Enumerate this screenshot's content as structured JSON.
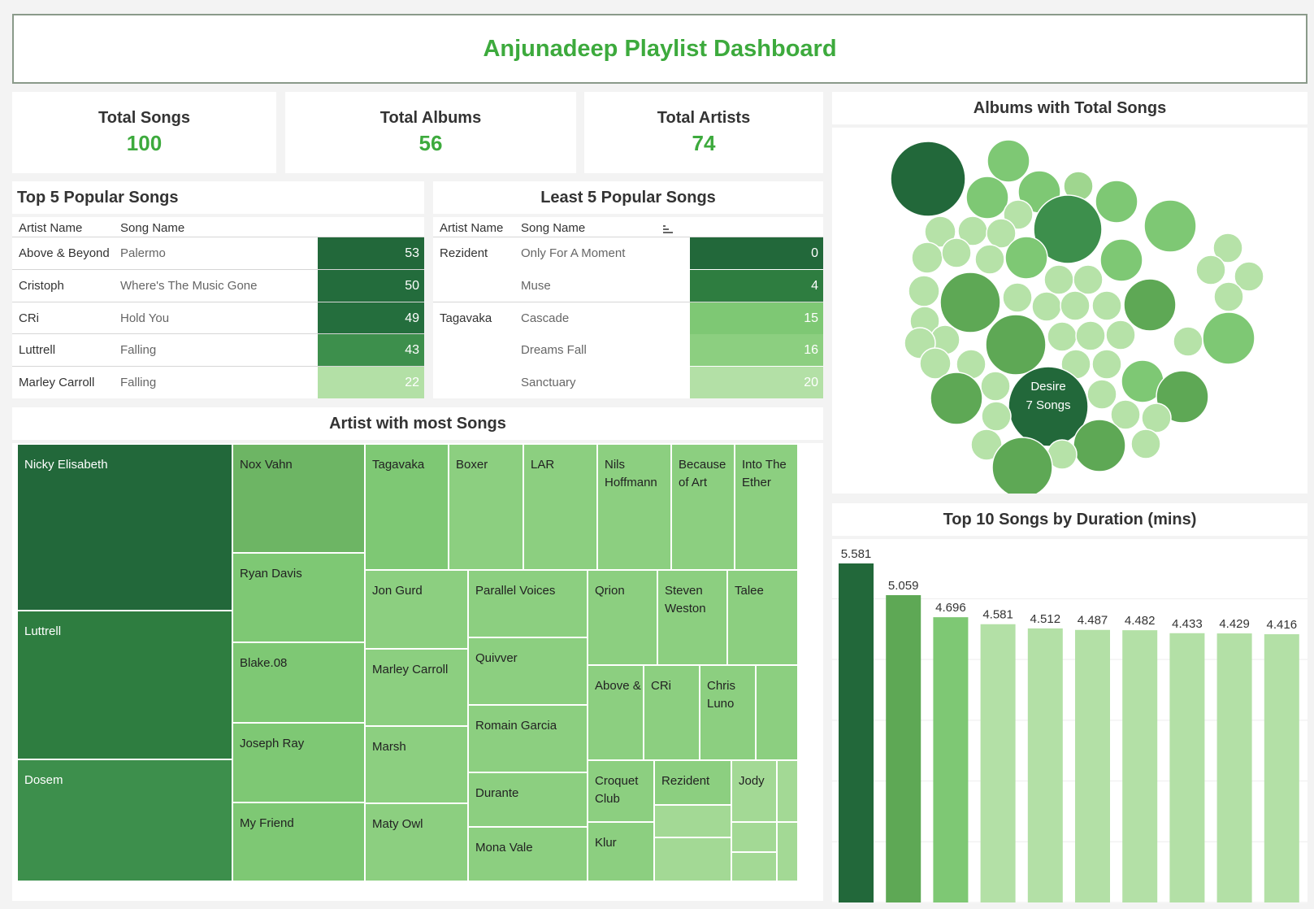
{
  "title": "Anjunadeep Playlist Dashboard",
  "kpis": [
    {
      "label": "Total Songs",
      "value": "100"
    },
    {
      "label": "Total Albums",
      "value": "56"
    },
    {
      "label": "Total Artists",
      "value": "74"
    }
  ],
  "top5": {
    "title": "Top 5 Popular Songs",
    "col_artist": "Artist Name",
    "col_song": "Song Name",
    "rows": [
      {
        "artist": "Above & Beyond",
        "song": "Palermo",
        "value": "53",
        "color": "#22683a"
      },
      {
        "artist": "Cristoph",
        "song": "Where's The Music Gone",
        "value": "50",
        "color": "#236c3c"
      },
      {
        "artist": "CRi",
        "song": "Hold You",
        "value": "49",
        "color": "#246e3d"
      },
      {
        "artist": "Luttrell",
        "song": "Falling",
        "value": "43",
        "color": "#3d8f4c"
      },
      {
        "artist": "Marley Carroll",
        "song": "Falling",
        "value": "22",
        "color": "#b3e0a6"
      }
    ]
  },
  "least5": {
    "title": "Least 5 Popular Songs",
    "col_artist": "Artist Name",
    "col_song": "Song Name",
    "rows": [
      {
        "artist": "Rezident",
        "song": "Only For A Moment",
        "value": "0",
        "color": "#22683a"
      },
      {
        "artist": "",
        "song": "Muse",
        "value": "4",
        "color": "#2e7d40"
      },
      {
        "artist": "Tagavaka",
        "song": "Cascade",
        "value": "15",
        "color": "#7ec874"
      },
      {
        "artist": "",
        "song": "Dreams Fall",
        "value": "16",
        "color": "#8ccf80"
      },
      {
        "artist": "",
        "song": "Sanctuary",
        "value": "20",
        "color": "#b3e0a6"
      }
    ]
  },
  "treemap": {
    "title": "Artist with most Songs",
    "labels": [
      "Nicky Elisabeth",
      "Luttrell",
      "Dosem",
      "Nox Vahn",
      "Ryan Davis",
      "Blake.08",
      "Joseph Ray",
      "My Friend",
      "Tagavaka",
      "Boxer",
      "LAR",
      "Nils Hoffmann",
      "Because of Art",
      "Into The Ether",
      "Jon Gurd",
      "Parallel Voices",
      "Qrion",
      "Steven Weston",
      "Talee",
      "Marley Carroll",
      "Quivver",
      "Above &",
      "CRi",
      "Chris Luno",
      "Romain Garcia",
      "Marsh",
      "Croquet Club",
      "Rezident",
      "Jody",
      "Durante",
      "Klur",
      "Maty Owl",
      "Mona Vale"
    ]
  },
  "bubbles": {
    "title": "Albums with Total Songs",
    "label_name": "Desire",
    "label_value": "7 Songs"
  },
  "duration": {
    "title": "Top 10 Songs by Duration (mins)"
  },
  "chart_data": [
    {
      "type": "bar",
      "title": "Top 10 Songs by Duration (mins)",
      "values": [
        5.581,
        5.059,
        4.696,
        4.581,
        4.512,
        4.487,
        4.482,
        4.433,
        4.429,
        4.416
      ],
      "value_labels": [
        "5.581",
        "5.059",
        "4.696",
        "4.581",
        "4.512",
        "4.487",
        "4.482",
        "4.433",
        "4.429",
        "4.416"
      ],
      "ylim": [
        0,
        5.581
      ]
    },
    {
      "type": "table",
      "title": "Top 5 Popular Songs",
      "values": [
        53,
        50,
        49,
        43,
        22
      ]
    },
    {
      "type": "table",
      "title": "Least 5 Popular Songs",
      "values": [
        0,
        4,
        15,
        16,
        20
      ]
    }
  ]
}
